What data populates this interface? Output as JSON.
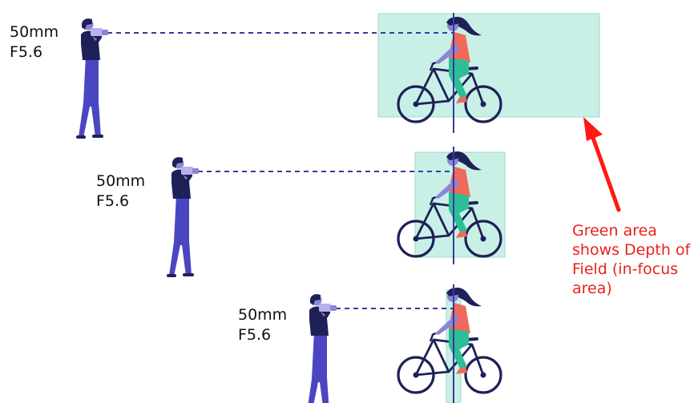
{
  "scenes": [
    {
      "focal_length": "50mm",
      "aperture": "F5.6"
    },
    {
      "focal_length": "50mm",
      "aperture": "F5.6"
    },
    {
      "focal_length": "50mm",
      "aperture": "F5.6"
    }
  ],
  "annotation": {
    "lines": [
      "Green area",
      "shows Depth of",
      "Field (in-focus",
      "area)"
    ]
  },
  "colors": {
    "dof_fill": "#c9f0e6",
    "dof_stroke": "#9fd9c9",
    "dark_figure": "#1e2158",
    "pants": "#4a46c2",
    "skin": "#8b85d8",
    "camera": "#b7b2ea",
    "shirt": "#f0695a",
    "leggings": "#2cbe97",
    "focus_line": "#3a3a9a",
    "arrow": "#ff1a12"
  }
}
